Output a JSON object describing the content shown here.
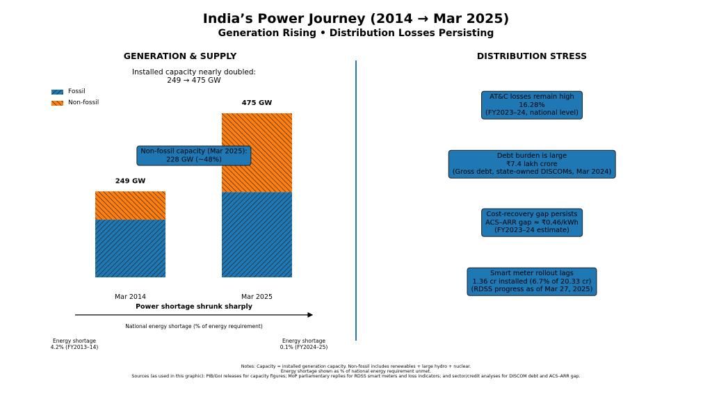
{
  "title": "India’s Power Journey (2014 → Mar 2025)",
  "subtitle": "Generation Rising • Distribution Losses Persisting",
  "colors": {
    "fossil": "#1f77b4",
    "non_fossil": "#ff7f0e",
    "box": "#1f77b4",
    "divider": "#1f77b4"
  },
  "left": {
    "heading": "GENERATION & SUPPLY",
    "caption_line1": "Installed capacity nearly doubled:",
    "caption_line2": "249 → 475 GW",
    "callout_line1": "Non-fossil capacity (Mar 2025):",
    "callout_line2": "228 GW (~48%)",
    "shortage_title": "Power shortage shrunk sharply",
    "shortage_axis_label": "National energy shortage (% of energy requirement)",
    "shortage_start_line1": "Energy shortage",
    "shortage_start_line2": "4.2% (FY2013–14)",
    "shortage_end_line1": "Energy shortage",
    "shortage_end_line2": "0.1% (FY2024–25)"
  },
  "chart_data": {
    "type": "bar",
    "stacked": true,
    "categories": [
      "Mar 2014",
      "Mar 2025"
    ],
    "series": [
      {
        "name": "Fossil",
        "values": [
          167,
          247
        ],
        "color": "#1f77b4",
        "hatch": "forward-diagonal"
      },
      {
        "name": "Non-fossil",
        "values": [
          82,
          228
        ],
        "color": "#ff7f0e",
        "hatch": "back-diagonal"
      }
    ],
    "total_labels": [
      "249 GW",
      "475 GW"
    ],
    "unit": "GW",
    "legend": "top-left",
    "grid": false,
    "ylim": [
      0,
      475
    ]
  },
  "right": {
    "heading": "DISTRIBUTION STRESS",
    "boxes": [
      {
        "l1": "AT&C losses remain high",
        "l2": "16.28%",
        "l3": "(FY2023–24, national level)"
      },
      {
        "l1": "Debt burden is large",
        "l2": "₹7.4 lakh crore",
        "l3": "(Gross debt, state-owned DISCOMs, Mar 2024)"
      },
      {
        "l1": "Cost-recovery gap persists",
        "l2": "ACS–ARR gap ≈ ₹0.46/kWh",
        "l3": "(FY2023–24 estimate)"
      },
      {
        "l1": "Smart meter rollout lags",
        "l2": "1.36 cr installed  (6.7% of 20.33 cr)",
        "l3": "(RDSS progress as of Mar 27, 2025)"
      }
    ]
  },
  "notes": {
    "l1": "Notes: Capacity = installed generation capacity. Non-fossil includes renewables + large hydro + nuclear.",
    "l2": "Energy shortage shown as % of national energy requirement unmet.",
    "l3": "Sources (as used in this graphic): PIB/GoI releases for capacity figures; MoP parliamentary replies for RDSS smart meters and loss indicators; and sector/credit analyses for DISCOM debt and ACS–ARR gap."
  }
}
